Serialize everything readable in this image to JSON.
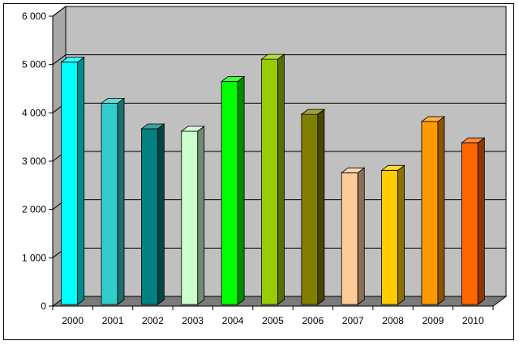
{
  "chart_data": {
    "type": "bar",
    "title": "",
    "xlabel": "",
    "ylabel": "",
    "categories": [
      "2000",
      "2001",
      "2002",
      "2003",
      "2004",
      "2005",
      "2006",
      "2007",
      "2008",
      "2009",
      "2010"
    ],
    "values": [
      5050,
      4200,
      3670,
      3620,
      4650,
      5110,
      3970,
      2760,
      2810,
      3820,
      3380
    ],
    "ylim": [
      0,
      6000
    ],
    "yticks": [
      0,
      1000,
      2000,
      3000,
      4000,
      5000,
      6000
    ],
    "ytick_labels": [
      "0",
      "1 000",
      "2 000",
      "3 000",
      "4 000",
      "5 000",
      "6 000"
    ],
    "grid": true,
    "style": "3d-column",
    "colors": [
      "#00ffff",
      "#33cccc",
      "#008080",
      "#ccffcc",
      "#00ff00",
      "#99cc00",
      "#808000",
      "#ffcc99",
      "#ffcc00",
      "#ff9900",
      "#ff6600"
    ],
    "background": "#c0c0c0"
  }
}
